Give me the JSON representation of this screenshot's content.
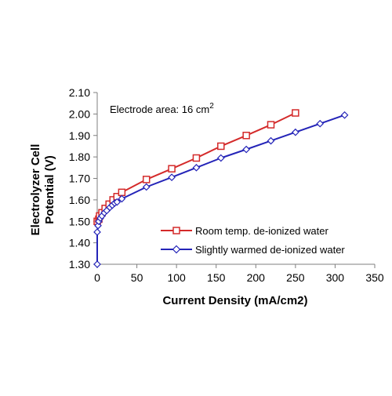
{
  "chart_data": {
    "type": "line",
    "title": "",
    "xlabel": "Current Density (mA/cm2)",
    "ylabel": "Electrolyzer Cell Potential (V)",
    "ylabel_lines": [
      "Electrolyzer Cell",
      "Potential (V)"
    ],
    "xlim": [
      0,
      350
    ],
    "ylim": [
      1.3,
      2.1
    ],
    "x_ticks": [
      0,
      50,
      100,
      150,
      200,
      250,
      300,
      350
    ],
    "y_ticks": [
      1.3,
      1.4,
      1.5,
      1.6,
      1.7,
      1.8,
      1.9,
      2.0,
      2.1
    ],
    "x_tick_labels": [
      "0",
      "50",
      "100",
      "150",
      "200",
      "250",
      "300",
      "350"
    ],
    "y_tick_labels": [
      "1.30",
      "1.40",
      "1.50",
      "1.60",
      "1.70",
      "1.80",
      "1.90",
      "2.00",
      "2.10"
    ],
    "grid": false,
    "legend_position": "bottom-right",
    "annotation": {
      "text": "Electrode area: 16 cm",
      "superscript": "2"
    },
    "series": [
      {
        "name": "Room temp. de-ionized water",
        "color": "#d42a2a",
        "marker": "square",
        "points": [
          [
            0,
            1.5
          ],
          [
            2,
            1.51
          ],
          [
            3,
            1.525
          ],
          [
            6,
            1.54
          ],
          [
            10,
            1.56
          ],
          [
            15,
            1.58
          ],
          [
            20,
            1.6
          ],
          [
            25,
            1.615
          ],
          [
            31,
            1.635
          ],
          [
            62,
            1.695
          ],
          [
            94,
            1.745
          ],
          [
            125,
            1.795
          ],
          [
            156,
            1.85
          ],
          [
            188,
            1.9
          ],
          [
            219,
            1.95
          ],
          [
            250,
            2.005
          ]
        ]
      },
      {
        "name": "Slightly warmed de-ionized water",
        "color": "#2424b8",
        "marker": "diamond",
        "points": [
          [
            0,
            1.3
          ],
          [
            0,
            1.45
          ],
          [
            1,
            1.48
          ],
          [
            2,
            1.5
          ],
          [
            4,
            1.515
          ],
          [
            6,
            1.525
          ],
          [
            9,
            1.54
          ],
          [
            12,
            1.55
          ],
          [
            16,
            1.565
          ],
          [
            19,
            1.575
          ],
          [
            22,
            1.585
          ],
          [
            25,
            1.59
          ],
          [
            31,
            1.605
          ],
          [
            62,
            1.66
          ],
          [
            94,
            1.705
          ],
          [
            125,
            1.75
          ],
          [
            156,
            1.795
          ],
          [
            188,
            1.835
          ],
          [
            219,
            1.875
          ],
          [
            250,
            1.915
          ],
          [
            281,
            1.955
          ],
          [
            312,
            1.995
          ]
        ]
      }
    ]
  }
}
